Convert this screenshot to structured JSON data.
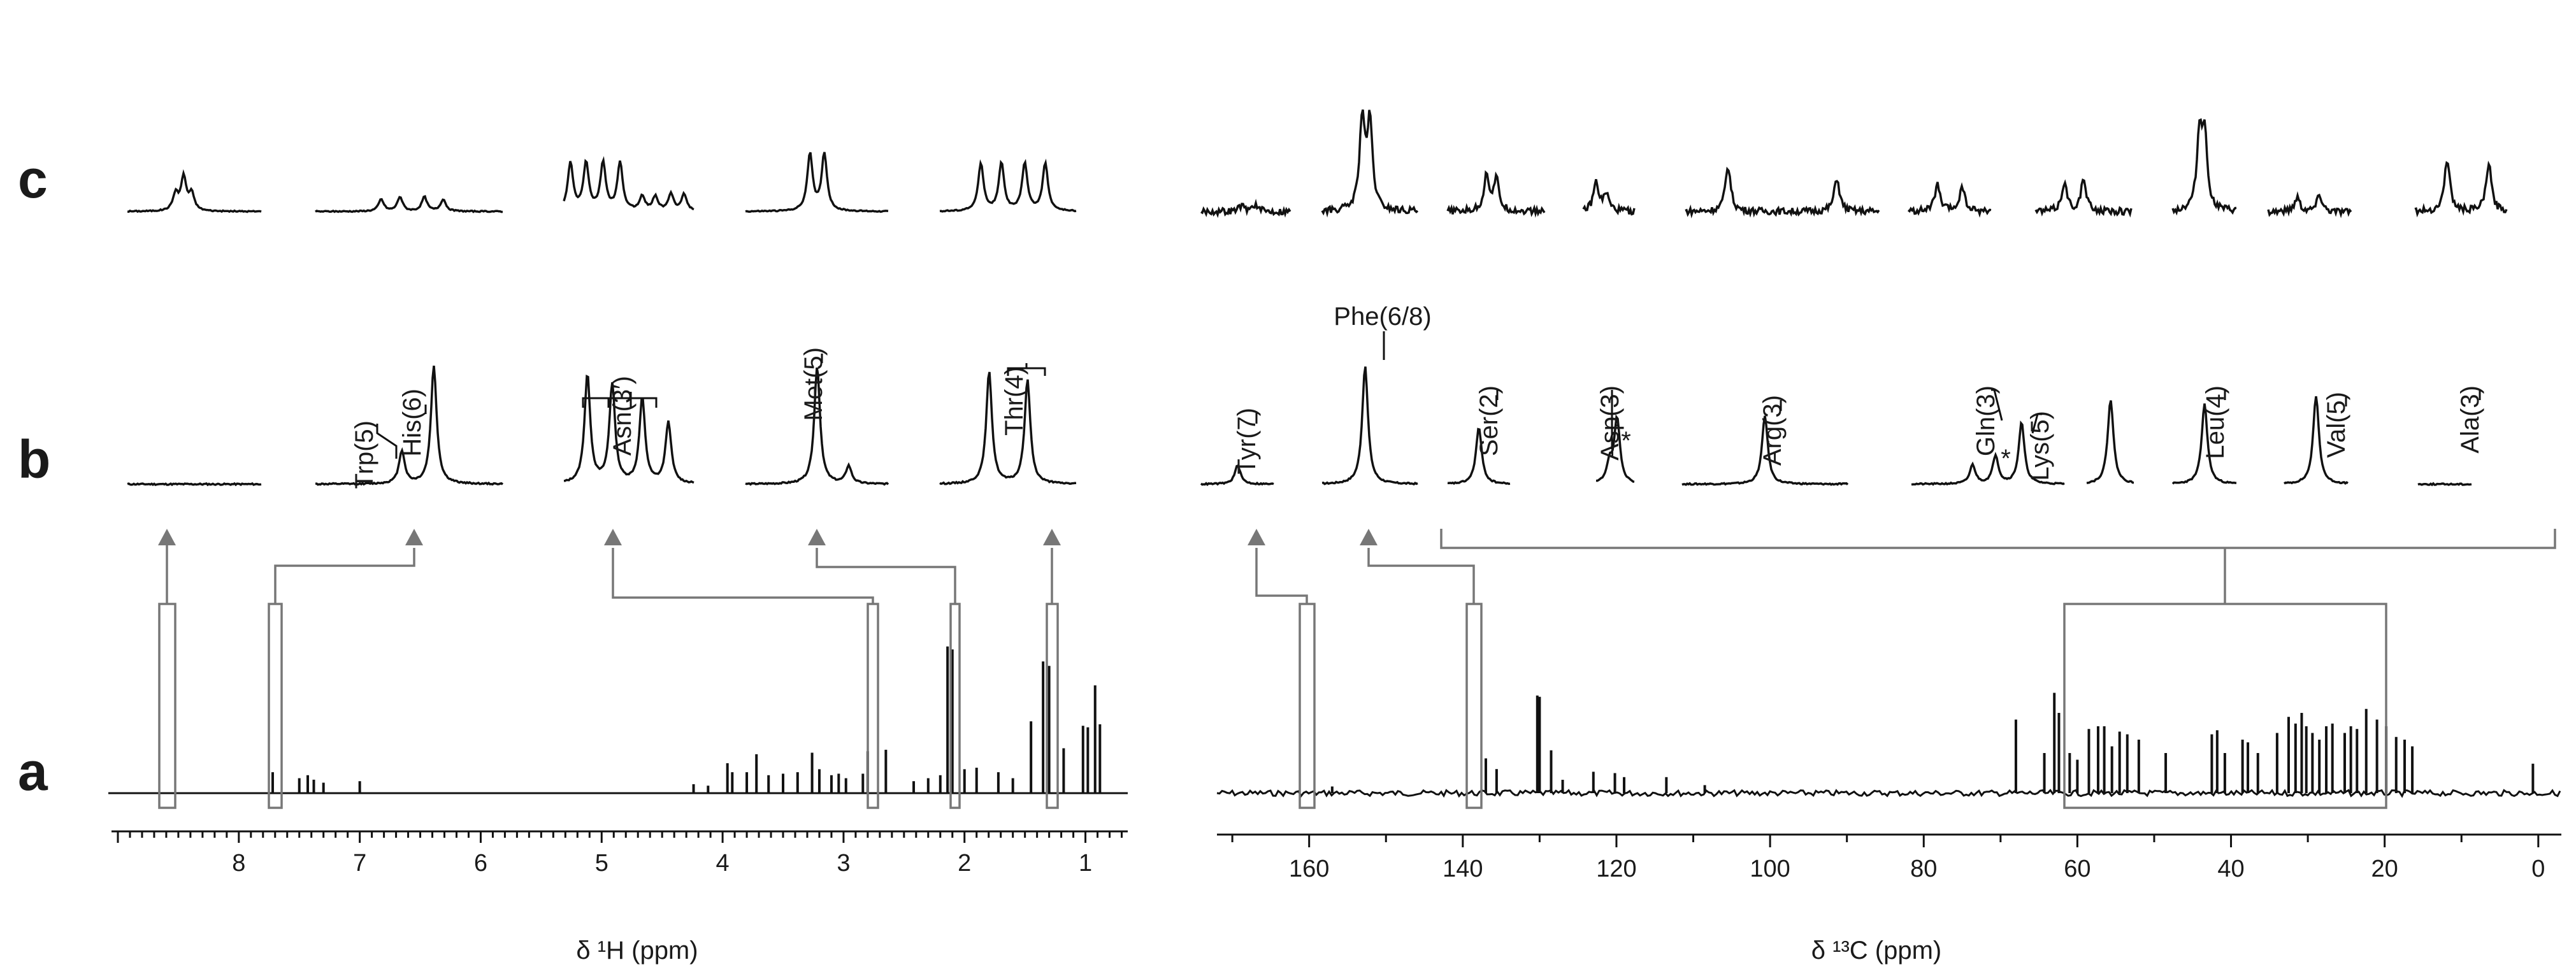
{
  "row_labels": [
    "c",
    "b",
    "a"
  ],
  "chart_data": [
    {
      "type": "line",
      "name": "1H spectrum",
      "xlabel": "δ ¹H (ppm)",
      "xlim": [
        9.0,
        0.65
      ],
      "xticks": [
        8,
        7,
        6,
        5,
        4,
        3,
        2,
        1
      ],
      "reversed_axis": true,
      "boxed_regions_ppm": [
        8.6,
        7.7,
        2.8,
        2.12,
        1.33
      ],
      "peaks": [
        {
          "x": 7.72,
          "h": 0.14
        },
        {
          "x": 7.5,
          "h": 0.1
        },
        {
          "x": 7.43,
          "h": 0.12
        },
        {
          "x": 7.38,
          "h": 0.09
        },
        {
          "x": 7.3,
          "h": 0.07
        },
        {
          "x": 7.0,
          "h": 0.08
        },
        {
          "x": 4.24,
          "h": 0.06
        },
        {
          "x": 4.12,
          "h": 0.05
        },
        {
          "x": 3.96,
          "h": 0.2
        },
        {
          "x": 3.92,
          "h": 0.14
        },
        {
          "x": 3.8,
          "h": 0.14
        },
        {
          "x": 3.72,
          "h": 0.26
        },
        {
          "x": 3.62,
          "h": 0.12
        },
        {
          "x": 3.5,
          "h": 0.13
        },
        {
          "x": 3.38,
          "h": 0.14
        },
        {
          "x": 3.26,
          "h": 0.27
        },
        {
          "x": 3.2,
          "h": 0.16
        },
        {
          "x": 3.1,
          "h": 0.12
        },
        {
          "x": 3.04,
          "h": 0.13
        },
        {
          "x": 2.98,
          "h": 0.1
        },
        {
          "x": 2.84,
          "h": 0.13
        },
        {
          "x": 2.8,
          "h": 0.28
        },
        {
          "x": 2.65,
          "h": 0.29
        },
        {
          "x": 2.42,
          "h": 0.08
        },
        {
          "x": 2.3,
          "h": 0.1
        },
        {
          "x": 2.2,
          "h": 0.12
        },
        {
          "x": 2.14,
          "h": 0.98
        },
        {
          "x": 2.1,
          "h": 0.96
        },
        {
          "x": 2.0,
          "h": 0.16
        },
        {
          "x": 1.9,
          "h": 0.17
        },
        {
          "x": 1.72,
          "h": 0.14
        },
        {
          "x": 1.6,
          "h": 0.1
        },
        {
          "x": 1.45,
          "h": 0.48
        },
        {
          "x": 1.35,
          "h": 0.88
        },
        {
          "x": 1.3,
          "h": 0.85
        },
        {
          "x": 1.18,
          "h": 0.3
        },
        {
          "x": 1.02,
          "h": 0.45
        },
        {
          "x": 0.98,
          "h": 0.44
        },
        {
          "x": 0.92,
          "h": 0.72
        },
        {
          "x": 0.88,
          "h": 0.46
        }
      ]
    },
    {
      "type": "line",
      "name": "13C spectrum",
      "xlabel": "δ ¹³C (ppm)",
      "xlim": [
        172,
        -3
      ],
      "xticks": [
        160,
        140,
        120,
        100,
        80,
        60,
        40,
        20,
        0
      ],
      "reversed_axis": true,
      "boxed_regions_ppm": [
        157,
        136
      ],
      "zoom_region_ppm": [
        59,
        18
      ],
      "peaks": [
        {
          "x": 157.0,
          "h": 0.05
        },
        {
          "x": 137.0,
          "h": 0.26
        },
        {
          "x": 135.6,
          "h": 0.18
        },
        {
          "x": 130.3,
          "h": 0.73
        },
        {
          "x": 130.0,
          "h": 0.72
        },
        {
          "x": 128.5,
          "h": 0.32
        },
        {
          "x": 127.0,
          "h": 0.1
        },
        {
          "x": 123.0,
          "h": 0.16
        },
        {
          "x": 120.2,
          "h": 0.15
        },
        {
          "x": 119.0,
          "h": 0.12
        },
        {
          "x": 113.5,
          "h": 0.12
        },
        {
          "x": 108.5,
          "h": 0.06
        },
        {
          "x": 68.0,
          "h": 0.55
        },
        {
          "x": 64.3,
          "h": 0.3
        },
        {
          "x": 63.0,
          "h": 0.75
        },
        {
          "x": 62.4,
          "h": 0.6
        },
        {
          "x": 61.0,
          "h": 0.3
        },
        {
          "x": 60.0,
          "h": 0.25
        },
        {
          "x": 58.5,
          "h": 0.48
        },
        {
          "x": 57.3,
          "h": 0.5
        },
        {
          "x": 56.5,
          "h": 0.5
        },
        {
          "x": 55.5,
          "h": 0.35
        },
        {
          "x": 54.5,
          "h": 0.46
        },
        {
          "x": 53.5,
          "h": 0.44
        },
        {
          "x": 52.0,
          "h": 0.4
        },
        {
          "x": 48.5,
          "h": 0.3
        },
        {
          "x": 42.5,
          "h": 0.44
        },
        {
          "x": 41.8,
          "h": 0.47
        },
        {
          "x": 40.8,
          "h": 0.3
        },
        {
          "x": 38.5,
          "h": 0.4
        },
        {
          "x": 37.8,
          "h": 0.38
        },
        {
          "x": 36.5,
          "h": 0.3
        },
        {
          "x": 34.0,
          "h": 0.45
        },
        {
          "x": 32.5,
          "h": 0.57
        },
        {
          "x": 31.6,
          "h": 0.52
        },
        {
          "x": 30.8,
          "h": 0.6
        },
        {
          "x": 30.2,
          "h": 0.5
        },
        {
          "x": 29.4,
          "h": 0.45
        },
        {
          "x": 28.5,
          "h": 0.4
        },
        {
          "x": 27.6,
          "h": 0.5
        },
        {
          "x": 26.8,
          "h": 0.52
        },
        {
          "x": 25.2,
          "h": 0.45
        },
        {
          "x": 24.4,
          "h": 0.5
        },
        {
          "x": 23.6,
          "h": 0.48
        },
        {
          "x": 22.4,
          "h": 0.63
        },
        {
          "x": 21.0,
          "h": 0.55
        },
        {
          "x": 19.8,
          "h": 0.5
        },
        {
          "x": 18.5,
          "h": 0.42
        },
        {
          "x": 17.4,
          "h": 0.4
        },
        {
          "x": 16.4,
          "h": 0.35
        },
        {
          "x": 0.7,
          "h": 0.22
        }
      ]
    }
  ],
  "subspectra_b": [
    {
      "label": "",
      "peaks": []
    },
    {
      "label": "Trp(5)",
      "peaks": [
        {
          "x": 0.46,
          "h": 0.28
        }
      ]
    },
    {
      "label": "His(6)",
      "peaks": [
        {
          "x": 0.63,
          "h": 1.0
        }
      ]
    },
    {
      "label": "Asn(3′)",
      "peaks": [
        {
          "x": 0.18,
          "h": 0.92
        },
        {
          "x": 0.37,
          "h": 0.84
        },
        {
          "x": 0.6,
          "h": 0.72
        },
        {
          "x": 0.8,
          "h": 0.52
        }
      ]
    },
    {
      "label": "Met(5)",
      "peaks": [
        {
          "x": 0.5,
          "h": 1.0
        },
        {
          "x": 0.72,
          "h": 0.15
        }
      ]
    },
    {
      "label": "Thr(4)",
      "peaks": [
        {
          "x": 0.36,
          "h": 0.95
        },
        {
          "x": 0.64,
          "h": 0.88
        }
      ]
    },
    {
      "label": "Tyr(7)",
      "peaks": [
        {
          "x": 0.5,
          "h": 0.16
        }
      ]
    },
    {
      "label": "Phe(6/8)",
      "peaks": [
        {
          "x": 0.45,
          "h": 1.0
        }
      ]
    },
    {
      "label": "Ser(2)",
      "peaks": [
        {
          "x": 0.5,
          "h": 0.48
        }
      ]
    },
    {
      "label": "Asp(3)",
      "peaks": [
        {
          "x": 0.35,
          "h": 0.16
        },
        {
          "x": 0.55,
          "h": 0.55
        }
      ]
    },
    {
      "label": "Arg(3)",
      "peaks": [
        {
          "x": 0.5,
          "h": 0.58
        }
      ]
    },
    {
      "label": "Gln(3)",
      "peaks": [
        {
          "x": 0.4,
          "h": 0.16
        },
        {
          "x": 0.55,
          "h": 0.24
        }
      ]
    },
    {
      "label": "Lys(5)",
      "peaks": [
        {
          "x": 0.72,
          "h": 0.52
        }
      ]
    },
    {
      "label": "Leu(4)",
      "peaks": [
        {
          "x": 0.5,
          "h": 0.72
        }
      ]
    },
    {
      "label": "Val(5)",
      "peaks": [
        {
          "x": 0.5,
          "h": 0.68
        }
      ]
    },
    {
      "label": "Ala(3)",
      "peaks": [
        {
          "x": 0.5,
          "h": 0.75
        }
      ]
    }
  ],
  "asterisk": "*"
}
